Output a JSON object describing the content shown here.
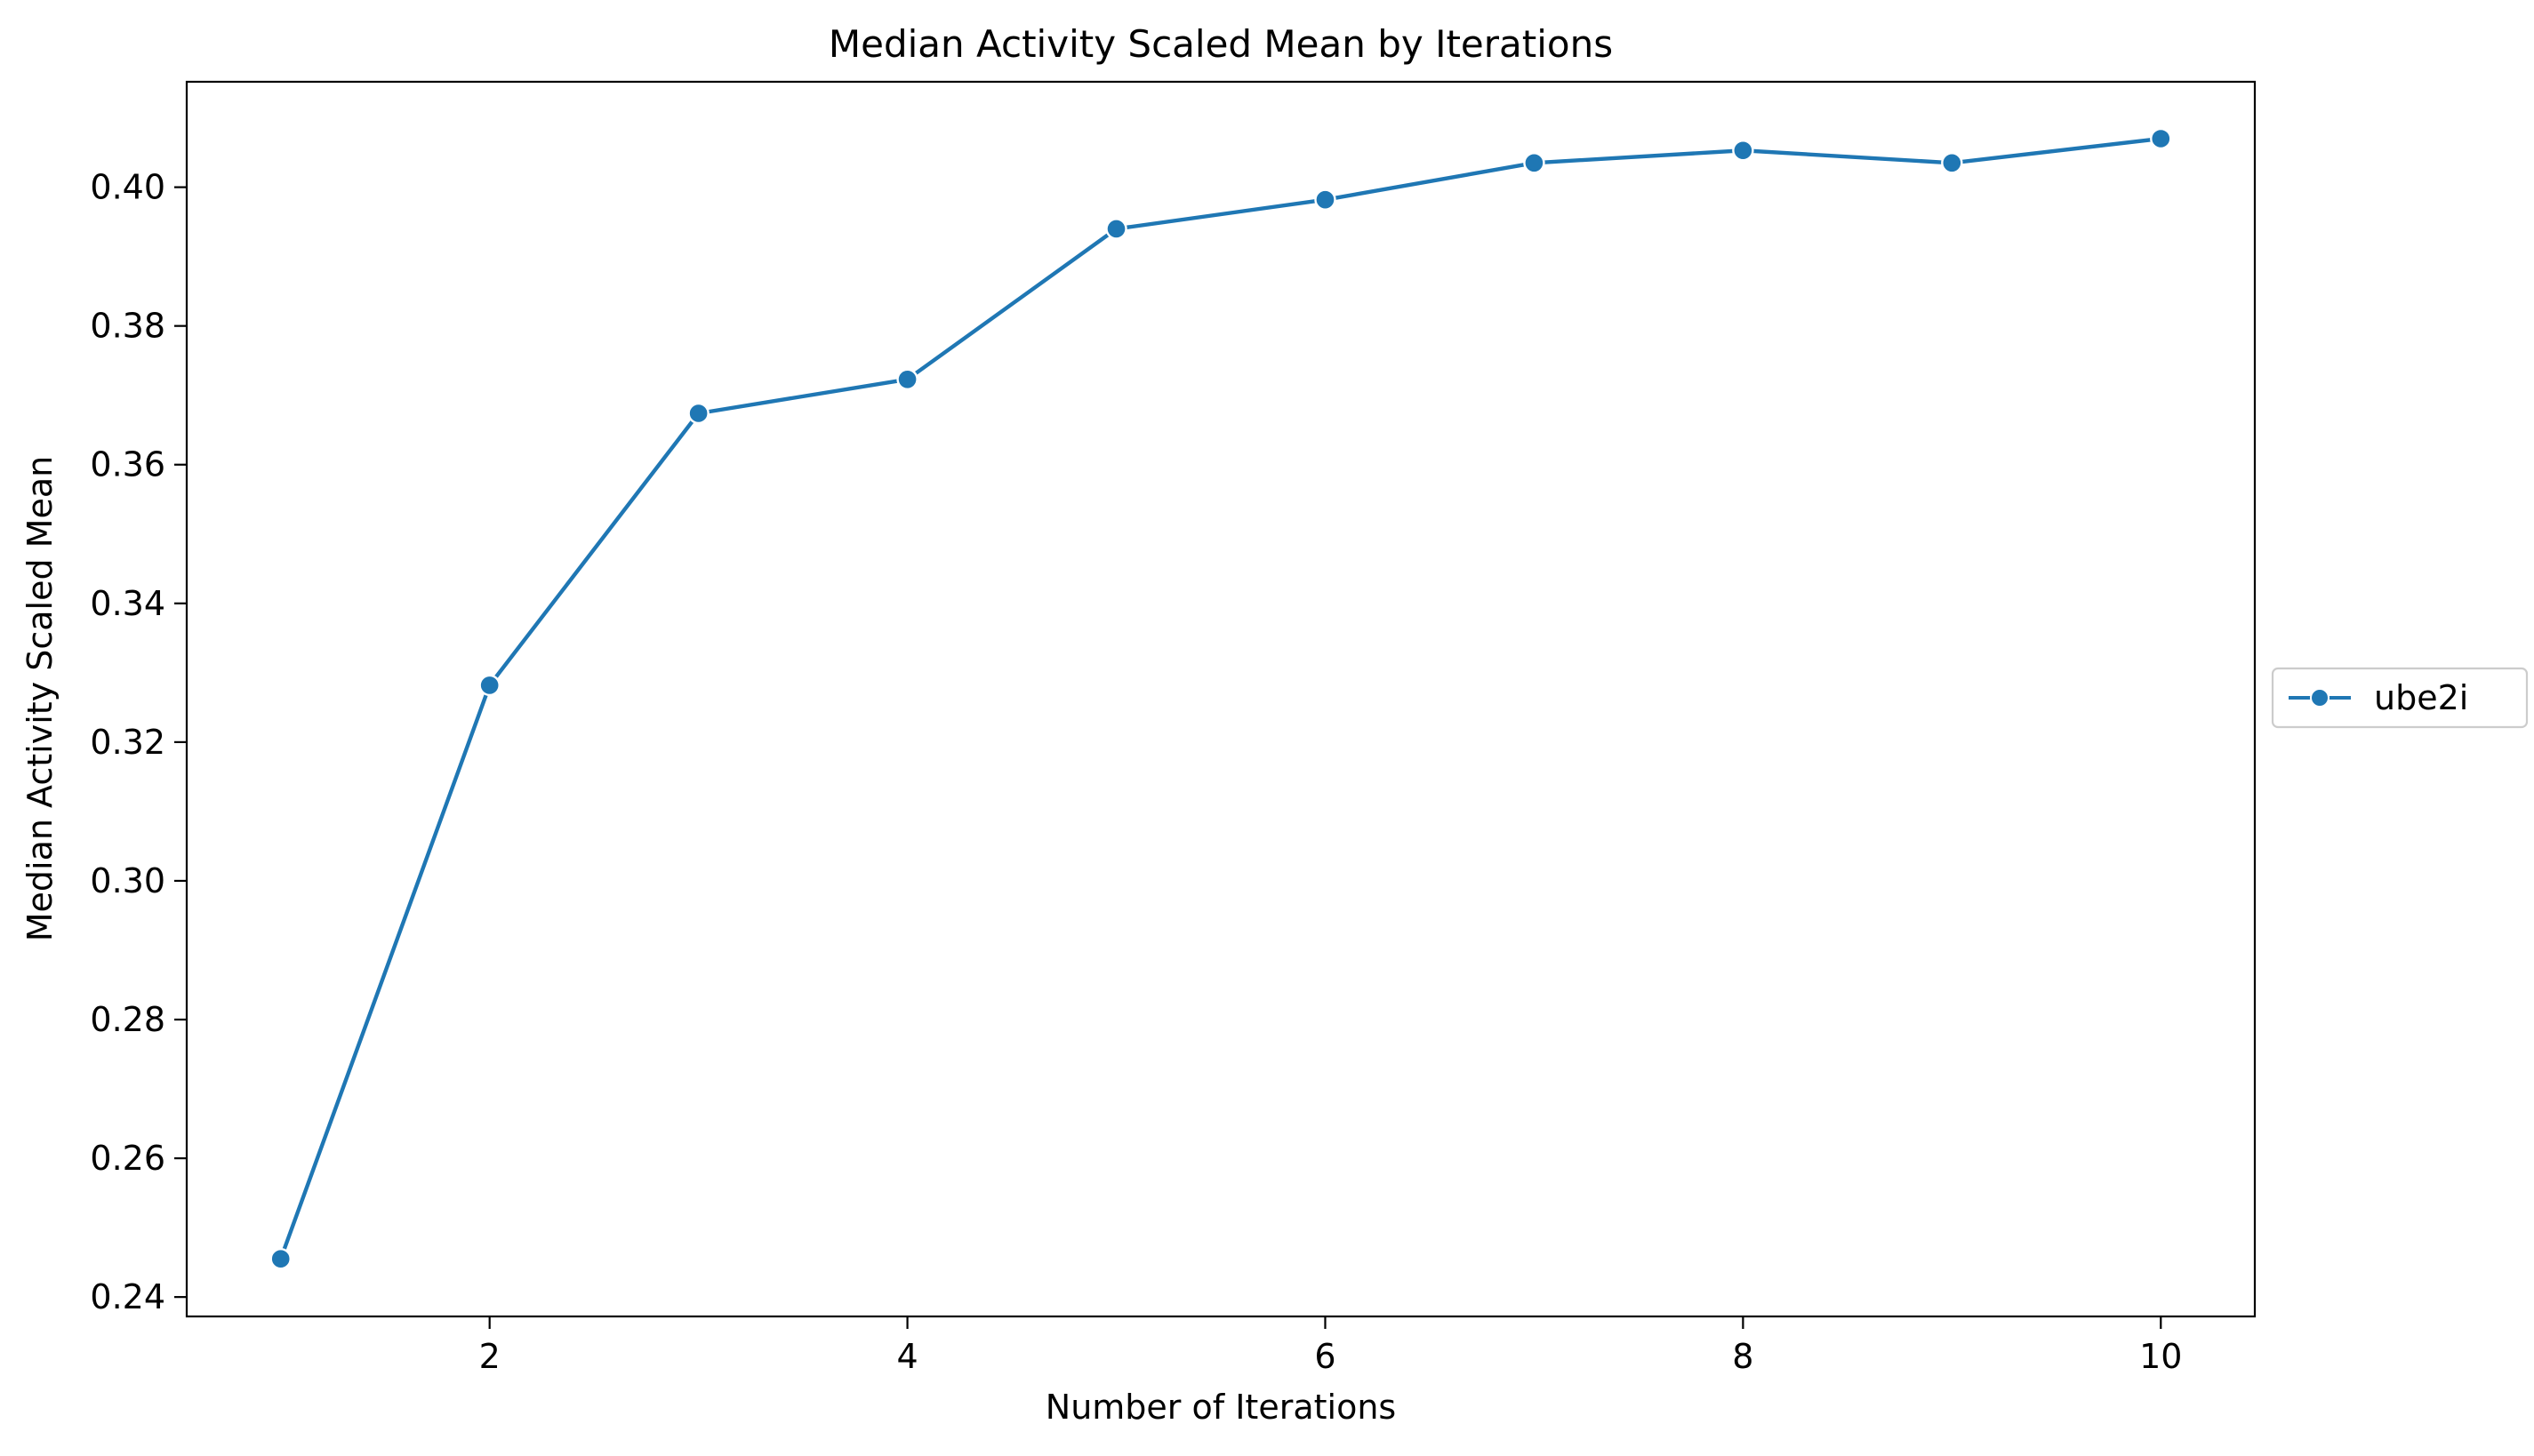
{
  "chart_data": {
    "type": "line",
    "title": "Median Activity Scaled Mean by Iterations",
    "xlabel": "Number of Iterations",
    "ylabel": "Median Activity Scaled Mean",
    "x": [
      1,
      2,
      3,
      4,
      5,
      6,
      7,
      8,
      9,
      10
    ],
    "series": [
      {
        "name": "ube2i",
        "color": "#1f77b4",
        "marker": "circle",
        "values": [
          0.2455,
          0.3282,
          0.3674,
          0.3723,
          0.394,
          0.3982,
          0.4035,
          0.4053,
          0.4035,
          0.407
        ]
      }
    ],
    "xlim": [
      0.55,
      10.45
    ],
    "ylim": [
      0.2372,
      0.4152
    ],
    "xticks": [
      2,
      4,
      6,
      8,
      10
    ],
    "xtick_labels": [
      "2",
      "4",
      "6",
      "8",
      "10"
    ],
    "yticks": [
      0.24,
      0.26,
      0.28,
      0.3,
      0.32,
      0.34,
      0.36,
      0.38,
      0.4
    ],
    "ytick_labels": [
      "0.24",
      "0.26",
      "0.28",
      "0.30",
      "0.32",
      "0.34",
      "0.36",
      "0.38",
      "0.40"
    ],
    "grid": false,
    "legend_position": "center-right-outside"
  }
}
